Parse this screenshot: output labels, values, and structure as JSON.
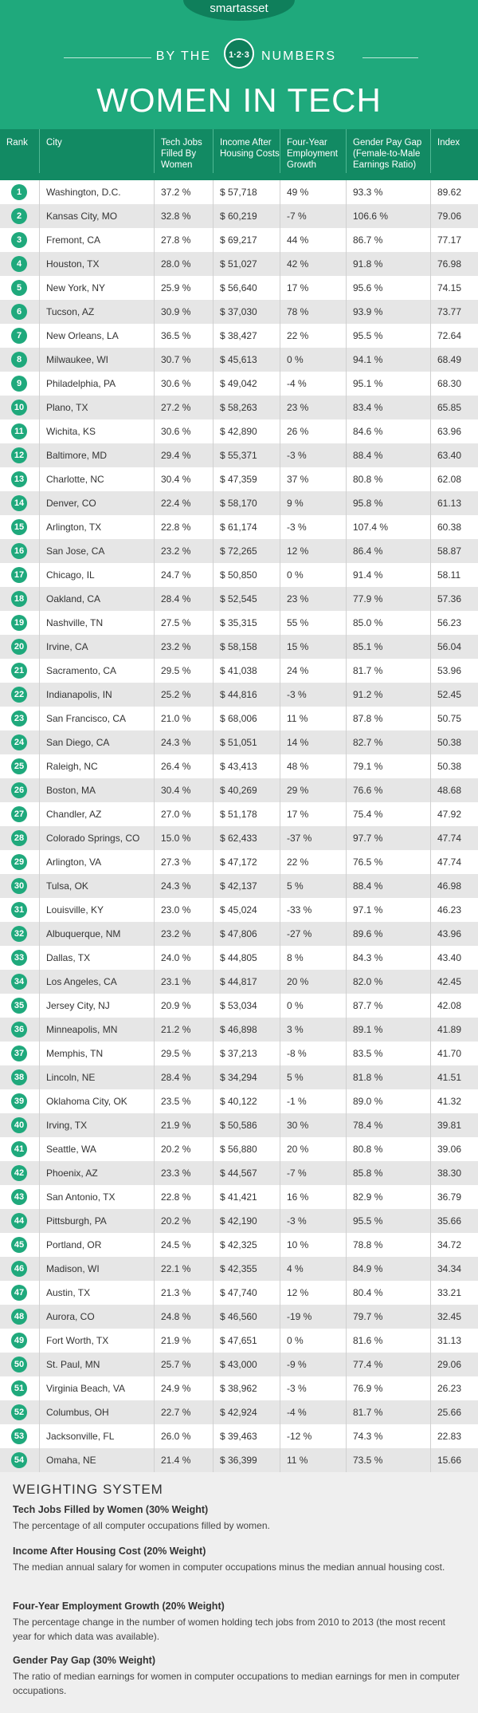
{
  "header": {
    "logo": "smartasset",
    "by_the": "BY THE",
    "badge": "1·2·3",
    "numbers": "NUMBERS",
    "title": "WOMEN IN TECH"
  },
  "table": {
    "columns": [
      "Rank",
      "City",
      "Tech Jobs Filled By Women",
      "Income After Housing Costs",
      "Four-Year Employment Growth",
      "Gender Pay Gap (Female-to-Male Earnings Ratio)",
      "Index"
    ],
    "rows": [
      [
        1,
        "Washington, D.C.",
        "37.2 %",
        "$ 57,718",
        "49 %",
        "93.3 %",
        "89.62"
      ],
      [
        2,
        "Kansas City, MO",
        "32.8 %",
        "$ 60,219",
        "-7 %",
        "106.6 %",
        "79.06"
      ],
      [
        3,
        "Fremont, CA",
        "27.8 %",
        "$ 69,217",
        "44 %",
        "86.7 %",
        "77.17"
      ],
      [
        4,
        "Houston, TX",
        "28.0 %",
        "$ 51,027",
        "42 %",
        "91.8 %",
        "76.98"
      ],
      [
        5,
        "New York, NY",
        "25.9 %",
        "$ 56,640",
        "17 %",
        "95.6 %",
        "74.15"
      ],
      [
        6,
        "Tucson, AZ",
        "30.9 %",
        "$ 37,030",
        "78 %",
        "93.9 %",
        "73.77"
      ],
      [
        7,
        "New Orleans, LA",
        "36.5 %",
        "$ 38,427",
        "22 %",
        "95.5 %",
        "72.64"
      ],
      [
        8,
        "Milwaukee, WI",
        "30.7 %",
        "$ 45,613",
        "0 %",
        "94.1 %",
        "68.49"
      ],
      [
        9,
        "Philadelphia, PA",
        "30.6 %",
        "$ 49,042",
        "-4 %",
        "95.1 %",
        "68.30"
      ],
      [
        10,
        "Plano, TX",
        "27.2 %",
        "$ 58,263",
        "23 %",
        "83.4 %",
        "65.85"
      ],
      [
        11,
        "Wichita, KS",
        "30.6 %",
        "$ 42,890",
        "26 %",
        "84.6 %",
        "63.96"
      ],
      [
        12,
        "Baltimore, MD",
        "29.4 %",
        "$ 55,371",
        "-3 %",
        "88.4 %",
        "63.40"
      ],
      [
        13,
        "Charlotte, NC",
        "30.4 %",
        "$ 47,359",
        "37 %",
        "80.8 %",
        "62.08"
      ],
      [
        14,
        "Denver, CO",
        "22.4 %",
        "$ 58,170",
        "9 %",
        "95.8 %",
        "61.13"
      ],
      [
        15,
        "Arlington, TX",
        "22.8 %",
        "$ 61,174",
        "-3 %",
        "107.4 %",
        "60.38"
      ],
      [
        16,
        "San Jose, CA",
        "23.2 %",
        "$ 72,265",
        "12 %",
        "86.4 %",
        "58.87"
      ],
      [
        17,
        "Chicago, IL",
        "24.7 %",
        "$ 50,850",
        "0 %",
        "91.4 %",
        "58.11"
      ],
      [
        18,
        "Oakland, CA",
        "28.4 %",
        "$ 52,545",
        "23 %",
        "77.9 %",
        "57.36"
      ],
      [
        19,
        "Nashville, TN",
        "27.5 %",
        "$ 35,315",
        "55 %",
        "85.0 %",
        "56.23"
      ],
      [
        20,
        "Irvine, CA",
        "23.2 %",
        "$ 58,158",
        "15 %",
        "85.1 %",
        "56.04"
      ],
      [
        21,
        "Sacramento, CA",
        "29.5 %",
        "$ 41,038",
        "24 %",
        "81.7 %",
        "53.96"
      ],
      [
        22,
        "Indianapolis, IN",
        "25.2 %",
        "$ 44,816",
        "-3 %",
        "91.2 %",
        "52.45"
      ],
      [
        23,
        "San Francisco, CA",
        "21.0 %",
        "$ 68,006",
        "11 %",
        "87.8 %",
        "50.75"
      ],
      [
        24,
        "San Diego, CA",
        "24.3 %",
        "$ 51,051",
        "14 %",
        "82.7 %",
        "50.38"
      ],
      [
        25,
        "Raleigh, NC",
        "26.4 %",
        "$ 43,413",
        "48 %",
        "79.1 %",
        "50.38"
      ],
      [
        26,
        "Boston, MA",
        "30.4 %",
        "$ 40,269",
        "29 %",
        "76.6 %",
        "48.68"
      ],
      [
        27,
        "Chandler, AZ",
        "27.0 %",
        "$ 51,178",
        "17 %",
        "75.4 %",
        "47.92"
      ],
      [
        28,
        "Colorado Springs, CO",
        "15.0 %",
        "$ 62,433",
        "-37 %",
        "97.7 %",
        "47.74"
      ],
      [
        29,
        "Arlington, VA",
        "27.3 %",
        "$ 47,172",
        "22 %",
        "76.5 %",
        "47.74"
      ],
      [
        30,
        "Tulsa, OK",
        "24.3 %",
        "$ 42,137",
        "5 %",
        "88.4 %",
        "46.98"
      ],
      [
        31,
        "Louisville, KY",
        "23.0 %",
        "$ 45,024",
        "-33 %",
        "97.1 %",
        "46.23"
      ],
      [
        32,
        "Albuquerque, NM",
        "23.2 %",
        "$ 47,806",
        "-27 %",
        "89.6 %",
        "43.96"
      ],
      [
        33,
        "Dallas, TX",
        "24.0 %",
        "$ 44,805",
        "8 %",
        "84.3 %",
        "43.40"
      ],
      [
        34,
        "Los Angeles, CA",
        "23.1 %",
        "$ 44,817",
        "20 %",
        "82.0 %",
        "42.45"
      ],
      [
        35,
        "Jersey City, NJ",
        "20.9 %",
        "$ 53,034",
        "0 %",
        "87.7 %",
        "42.08"
      ],
      [
        36,
        "Minneapolis, MN",
        "21.2 %",
        "$ 46,898",
        "3 %",
        "89.1 %",
        "41.89"
      ],
      [
        37,
        "Memphis, TN",
        "29.5 %",
        "$ 37,213",
        "-8 %",
        "83.5 %",
        "41.70"
      ],
      [
        38,
        "Lincoln, NE",
        "28.4 %",
        "$ 34,294",
        "5 %",
        "81.8 %",
        "41.51"
      ],
      [
        39,
        "Oklahoma City, OK",
        "23.5 %",
        "$ 40,122",
        "-1 %",
        "89.0 %",
        "41.32"
      ],
      [
        40,
        "Irving, TX",
        "21.9 %",
        "$ 50,586",
        "30 %",
        "78.4 %",
        "39.81"
      ],
      [
        41,
        "Seattle, WA",
        "20.2 %",
        "$ 56,880",
        "20 %",
        "80.8 %",
        "39.06"
      ],
      [
        42,
        "Phoenix, AZ",
        "23.3 %",
        "$ 44,567",
        "-7 %",
        "85.8 %",
        "38.30"
      ],
      [
        43,
        "San Antonio, TX",
        "22.8 %",
        "$ 41,421",
        "16 %",
        "82.9 %",
        "36.79"
      ],
      [
        44,
        "Pittsburgh, PA",
        "20.2 %",
        "$ 42,190",
        "-3 %",
        "95.5 %",
        "35.66"
      ],
      [
        45,
        "Portland, OR",
        "24.5 %",
        "$ 42,325",
        "10 %",
        "78.8 %",
        "34.72"
      ],
      [
        46,
        "Madison, WI",
        "22.1 %",
        "$ 42,355",
        "4 %",
        "84.9 %",
        "34.34"
      ],
      [
        47,
        "Austin, TX",
        "21.3 %",
        "$ 47,740",
        "12 %",
        "80.4 %",
        "33.21"
      ],
      [
        48,
        "Aurora, CO",
        "24.8 %",
        "$ 46,560",
        "-19 %",
        "79.7 %",
        "32.45"
      ],
      [
        49,
        "Fort Worth, TX",
        "21.9 %",
        "$ 47,651",
        "0 %",
        "81.6 %",
        "31.13"
      ],
      [
        50,
        "St. Paul, MN",
        "25.7 %",
        "$ 43,000",
        "-9 %",
        "77.4 %",
        "29.06"
      ],
      [
        51,
        "Virginia Beach, VA",
        "24.9 %",
        "$ 38,962",
        "-3 %",
        "76.9 %",
        "26.23"
      ],
      [
        52,
        "Columbus, OH",
        "22.7 %",
        "$ 42,924",
        "-4 %",
        "81.7 %",
        "25.66"
      ],
      [
        53,
        "Jacksonville, FL",
        "26.0 %",
        "$ 39,463",
        "-12 %",
        "74.3 %",
        "22.83"
      ],
      [
        54,
        "Omaha, NE",
        "21.4 %",
        "$ 36,399",
        "11 %",
        "73.5 %",
        "15.66"
      ]
    ]
  },
  "weighting": {
    "title": "WEIGHTING SYSTEM",
    "items": [
      {
        "heading": "Tech Jobs Filled by Women (30% Weight)",
        "text": "The percentage of all computer occupations filled by women."
      },
      {
        "heading": "Income After Housing Cost (20% Weight)",
        "text": "The median annual salary for women in computer occupations minus the median annual housing cost."
      },
      {
        "heading": "Four-Year Employment Growth (20% Weight)",
        "text": "The percentage change in the number of women holding tech jobs from 2010 to 2013 (the most recent year for which data was available)."
      },
      {
        "heading": "Gender Pay Gap (30% Weight)",
        "text": "The ratio of median earnings for women in computer occupations to median earnings for men in computer occupations."
      }
    ]
  }
}
